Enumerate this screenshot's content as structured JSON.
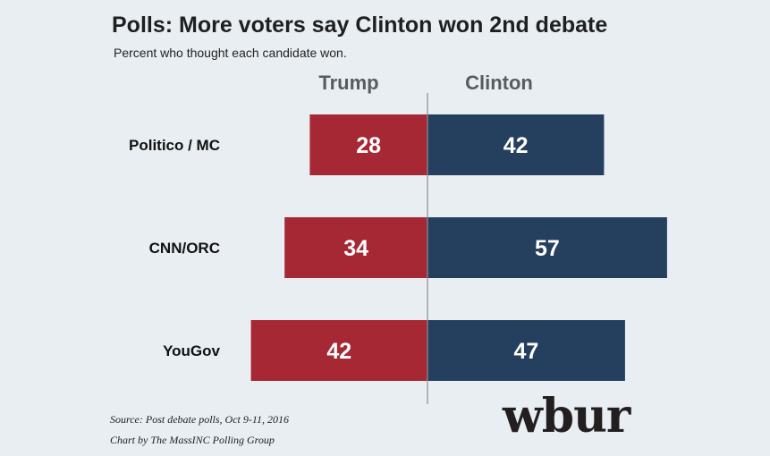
{
  "chart_data": {
    "type": "bar",
    "title": "Polls: More voters say Clinton won 2nd debate",
    "subtitle": "Percent who thought each candidate won.",
    "categories": [
      "Politico / MC",
      "CNN/ORC",
      "YouGov"
    ],
    "series": [
      {
        "name": "Trump",
        "values": [
          28,
          34,
          42
        ],
        "color": "#a52834"
      },
      {
        "name": "Clinton",
        "values": [
          42,
          57,
          47
        ],
        "color": "#253f5f"
      }
    ],
    "orientation": "horizontal-diverging",
    "grid": false
  },
  "footer": {
    "source": "Source: Post debate polls, Oct 9-11, 2016",
    "credit": "Chart by The MassINC Polling Group"
  },
  "logo_text": "wbur",
  "colors": {
    "background": "#e9eef2",
    "trump": "#a52834",
    "clinton": "#253f5f",
    "divider": "#8a8f94"
  }
}
